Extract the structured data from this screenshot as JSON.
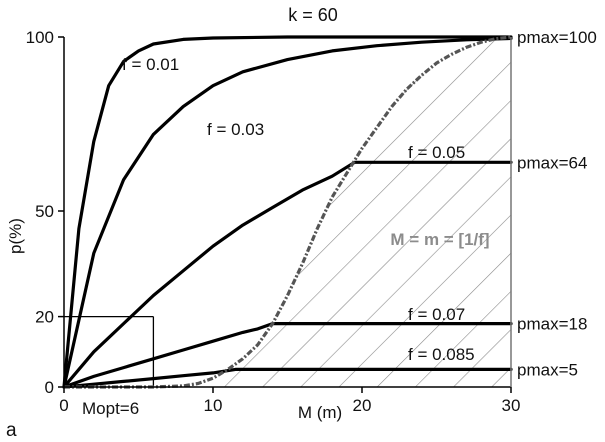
{
  "figure_label": "a",
  "colors": {
    "curve": "#000000",
    "boundary": "#555555",
    "hatch": "#8a8a8a",
    "region_label": "#8c8c8c"
  },
  "chart_data": {
    "type": "line",
    "title": "k = 60",
    "xlabel": "M (m)",
    "ylabel": "p(%)",
    "xlim": [
      0,
      30
    ],
    "ylim": [
      0,
      100
    ],
    "xticks": [
      {
        "value": 0,
        "label": "0"
      },
      {
        "value": 10,
        "label": "10"
      },
      {
        "value": 20,
        "label": "20"
      },
      {
        "value": 30,
        "label": "30"
      }
    ],
    "yticks": [
      {
        "value": 0,
        "label": "0"
      },
      {
        "value": 20,
        "label": "20"
      },
      {
        "value": 50,
        "label": "50"
      },
      {
        "value": 100,
        "label": "100"
      }
    ],
    "grid": false,
    "series": [
      {
        "name": "f = 0.01",
        "x": [
          0,
          1,
          2,
          3,
          4,
          5,
          6,
          8,
          10,
          15,
          20,
          30
        ],
        "y": [
          0,
          45,
          70,
          86,
          93,
          96,
          98,
          99.3,
          99.7,
          100,
          100,
          100
        ]
      },
      {
        "name": "f = 0.03",
        "x": [
          0,
          2,
          4,
          6,
          8,
          10,
          12,
          15,
          18,
          21,
          24,
          27,
          30
        ],
        "y": [
          0,
          38,
          59,
          72,
          80,
          86,
          90,
          93.5,
          96,
          97.5,
          98.5,
          99.2,
          99.6
        ]
      },
      {
        "name": "f = 0.05",
        "x": [
          0,
          2,
          4,
          6,
          8,
          10,
          12,
          14,
          16,
          18,
          19.5,
          30
        ],
        "y": [
          0,
          10,
          18,
          26,
          33,
          40,
          46,
          51,
          56,
          60,
          64,
          64
        ]
      },
      {
        "name": "f = 0.07",
        "x": [
          0,
          2,
          4,
          6,
          8,
          10,
          12,
          13,
          14,
          30
        ],
        "y": [
          0,
          3,
          5.5,
          8,
          10.5,
          13,
          15.5,
          16.5,
          18,
          18
        ]
      },
      {
        "name": "f = 0.085",
        "x": [
          0,
          2,
          4,
          6,
          8,
          10,
          11.5,
          30
        ],
        "y": [
          0,
          0.8,
          1.6,
          2.4,
          3.2,
          4,
          5,
          5
        ]
      }
    ],
    "boundary": {
      "label": "M = m = [1/f]",
      "x": [
        0,
        3,
        6,
        8,
        9,
        10,
        11,
        12,
        13,
        14,
        15,
        16,
        17,
        18,
        19,
        20,
        21,
        22,
        23,
        24,
        25,
        26,
        27,
        28,
        29,
        30
      ],
      "y": [
        0,
        0,
        0,
        0.3,
        1,
        2.5,
        5,
        8,
        12,
        18,
        26,
        35,
        45,
        54,
        61,
        68,
        74,
        80,
        85,
        89,
        92.5,
        95,
        97,
        98.5,
        99.5,
        100
      ]
    },
    "annotations": [
      {
        "text": "pmax=100",
        "value": 100
      },
      {
        "text": "pmax=64",
        "value": 64
      },
      {
        "text": "pmax=18",
        "value": 18
      },
      {
        "text": "pmax=5",
        "value": 5
      }
    ],
    "optimum": {
      "label": "Mopt=6",
      "x": 6,
      "y": 20
    }
  }
}
